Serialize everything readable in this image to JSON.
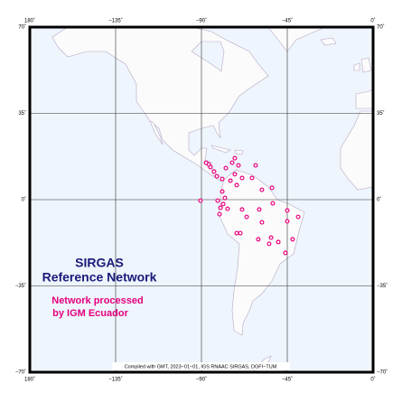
{
  "map": {
    "title": "SIRGAS",
    "subtitle": "Reference Network",
    "note_lines": [
      "Network processed",
      "by IGM Ecuador"
    ],
    "credit": "Compiled with GMT, 2023−01−01, IGS RNAAC SIRGAS, DGFI−TUM",
    "xlim": [
      -180,
      0
    ],
    "ylim": [
      -70,
      70
    ],
    "xticks": [
      {
        "value": -180,
        "label": "180˚"
      },
      {
        "value": -135,
        "label": "−135˚"
      },
      {
        "value": -90,
        "label": "−90˚"
      },
      {
        "value": -45,
        "label": "−45˚"
      },
      {
        "value": 0,
        "label": "0˚"
      }
    ],
    "yticks": [
      {
        "value": 70,
        "label": "70˚"
      },
      {
        "value": 35,
        "label": "35˚"
      },
      {
        "value": 0,
        "label": "0˚"
      },
      {
        "value": -35,
        "label": "−35˚"
      },
      {
        "value": -70,
        "label": "−70˚"
      }
    ],
    "station_color": "#e6007e",
    "stations": {
      "lon": [
        -85.3,
        -83.4,
        -86.2,
        -87.6,
        -81.9,
        -79.1,
        -77.2,
        -73.9,
        -70.6,
        -72.5,
        -74.8,
        -71.5,
        -68.7,
        -61.6,
        -72.5,
        -90.5,
        -81.5,
        -80.0,
        -80.5,
        -78.6,
        -77.7,
        -79.1,
        -76.3,
        -68.7,
        -59.7,
        -53.0,
        -52.6,
        -45.0,
        -39.3,
        -45.0,
        -58.3,
        -71.5,
        -69.6,
        -66.3,
        -60.2,
        -53.5,
        -49.7,
        -42.2,
        -46.0,
        -54.5,
        -63.5,
        -58.3
      ],
      "lat": [
        13.2,
        11.4,
        14.3,
        15.0,
        9.5,
        8.4,
        12.8,
        15.0,
        13.9,
        10.3,
        7.7,
        5.9,
        8.8,
        13.9,
        16.8,
        -0.4,
        -0.4,
        -3.3,
        -5.9,
        -1.8,
        0.7,
        3.3,
        -3.7,
        -4.0,
        -4.0,
        4.8,
        -1.5,
        -4.4,
        -7.0,
        -8.8,
        -9.2,
        -13.6,
        -13.6,
        -7.0,
        -16.1,
        -15.4,
        -17.2,
        -16.1,
        -21.6,
        -17.9,
        8.8,
        4.0
      ]
    }
  }
}
